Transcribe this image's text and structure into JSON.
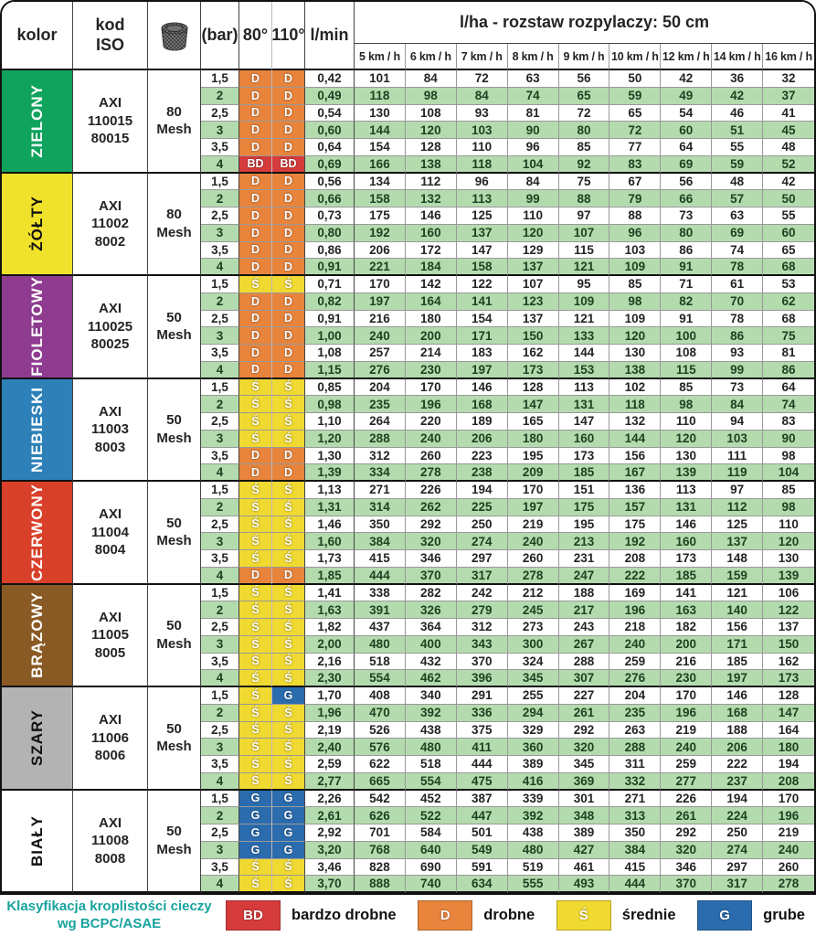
{
  "header": {
    "kolor": "kolor",
    "kod_iso": "kod\nISO",
    "bar": "(bar)",
    "deg80": "80°",
    "deg110": "110°",
    "lmin": "l/min",
    "lha_title": "l/ha - rozstaw rozpylaczy: 50 cm",
    "speeds": [
      "5 km / h",
      "6 km / h",
      "7 km / h",
      "8 km / h",
      "9 km / h",
      "10 km / h",
      "12 km / h",
      "14 km / h",
      "16 km / h"
    ],
    "mesh_icon": "mesh-filter-icon"
  },
  "class_colors": {
    "BD": "#d63b3c",
    "D": "#e8843c",
    "Ś": "#f0d930",
    "G": "#2b6cae"
  },
  "stripe_color": "#b4dbae",
  "groups": [
    {
      "name": "ZIELONY",
      "swatch": "#10a35e",
      "text_color": "#ffffff",
      "code": "AXI\n110015\n80015",
      "mesh": "80\nMesh",
      "rows": [
        {
          "bar": "1,5",
          "c80": "D",
          "c110": "D",
          "lmin": "0,42",
          "lha": [
            101,
            84,
            72,
            63,
            56,
            50,
            42,
            36,
            32
          ]
        },
        {
          "bar": "2",
          "c80": "D",
          "c110": "D",
          "lmin": "0,49",
          "lha": [
            118,
            98,
            84,
            74,
            65,
            59,
            49,
            42,
            37
          ]
        },
        {
          "bar": "2,5",
          "c80": "D",
          "c110": "D",
          "lmin": "0,54",
          "lha": [
            130,
            108,
            93,
            81,
            72,
            65,
            54,
            46,
            41
          ]
        },
        {
          "bar": "3",
          "c80": "D",
          "c110": "D",
          "lmin": "0,60",
          "lha": [
            144,
            120,
            103,
            90,
            80,
            72,
            60,
            51,
            45
          ]
        },
        {
          "bar": "3,5",
          "c80": "D",
          "c110": "D",
          "lmin": "0,64",
          "lha": [
            154,
            128,
            110,
            96,
            85,
            77,
            64,
            55,
            48
          ]
        },
        {
          "bar": "4",
          "c80": "BD",
          "c110": "BD",
          "lmin": "0,69",
          "lha": [
            166,
            138,
            118,
            104,
            92,
            83,
            69,
            59,
            52
          ]
        }
      ]
    },
    {
      "name": "ŻÓŁTY",
      "swatch": "#f0e22b",
      "text_color": "#111111",
      "code": "AXI\n11002\n8002",
      "mesh": "80\nMesh",
      "rows": [
        {
          "bar": "1,5",
          "c80": "D",
          "c110": "D",
          "lmin": "0,56",
          "lha": [
            134,
            112,
            96,
            84,
            75,
            67,
            56,
            48,
            42
          ]
        },
        {
          "bar": "2",
          "c80": "D",
          "c110": "D",
          "lmin": "0,66",
          "lha": [
            158,
            132,
            113,
            99,
            88,
            79,
            66,
            57,
            50
          ]
        },
        {
          "bar": "2,5",
          "c80": "D",
          "c110": "D",
          "lmin": "0,73",
          "lha": [
            175,
            146,
            125,
            110,
            97,
            88,
            73,
            63,
            55
          ]
        },
        {
          "bar": "3",
          "c80": "D",
          "c110": "D",
          "lmin": "0,80",
          "lha": [
            192,
            160,
            137,
            120,
            107,
            96,
            80,
            69,
            60
          ]
        },
        {
          "bar": "3,5",
          "c80": "D",
          "c110": "D",
          "lmin": "0,86",
          "lha": [
            206,
            172,
            147,
            129,
            115,
            103,
            86,
            74,
            65
          ]
        },
        {
          "bar": "4",
          "c80": "D",
          "c110": "D",
          "lmin": "0,91",
          "lha": [
            221,
            184,
            158,
            137,
            121,
            109,
            91,
            78,
            68
          ]
        }
      ]
    },
    {
      "name": "FIOLETOWY",
      "swatch": "#8f3c90",
      "text_color": "#ffffff",
      "code": "AXI\n110025\n80025",
      "mesh": "50\nMesh",
      "rows": [
        {
          "bar": "1,5",
          "c80": "Ś",
          "c110": "Ś",
          "lmin": "0,71",
          "lha": [
            170,
            142,
            122,
            107,
            95,
            85,
            71,
            61,
            53
          ]
        },
        {
          "bar": "2",
          "c80": "D",
          "c110": "D",
          "lmin": "0,82",
          "lha": [
            197,
            164,
            141,
            123,
            109,
            98,
            82,
            70,
            62
          ]
        },
        {
          "bar": "2,5",
          "c80": "D",
          "c110": "D",
          "lmin": "0,91",
          "lha": [
            216,
            180,
            154,
            137,
            121,
            109,
            91,
            78,
            68
          ]
        },
        {
          "bar": "3",
          "c80": "D",
          "c110": "D",
          "lmin": "1,00",
          "lha": [
            240,
            200,
            171,
            150,
            133,
            120,
            100,
            86,
            75
          ]
        },
        {
          "bar": "3,5",
          "c80": "D",
          "c110": "D",
          "lmin": "1,08",
          "lha": [
            257,
            214,
            183,
            162,
            144,
            130,
            108,
            93,
            81
          ]
        },
        {
          "bar": "4",
          "c80": "D",
          "c110": "D",
          "lmin": "1,15",
          "lha": [
            276,
            230,
            197,
            173,
            153,
            138,
            115,
            99,
            86
          ]
        }
      ]
    },
    {
      "name": "NIEBIESKI",
      "swatch": "#2d81b8",
      "text_color": "#ffffff",
      "code": "AXI\n11003\n8003",
      "mesh": "50\nMesh",
      "rows": [
        {
          "bar": "1,5",
          "c80": "Ś",
          "c110": "Ś",
          "lmin": "0,85",
          "lha": [
            204,
            170,
            146,
            128,
            113,
            102,
            85,
            73,
            64
          ]
        },
        {
          "bar": "2",
          "c80": "Ś",
          "c110": "Ś",
          "lmin": "0,98",
          "lha": [
            235,
            196,
            168,
            147,
            131,
            118,
            98,
            84,
            74
          ]
        },
        {
          "bar": "2,5",
          "c80": "Ś",
          "c110": "Ś",
          "lmin": "1,10",
          "lha": [
            264,
            220,
            189,
            165,
            147,
            132,
            110,
            94,
            83
          ]
        },
        {
          "bar": "3",
          "c80": "Ś",
          "c110": "Ś",
          "lmin": "1,20",
          "lha": [
            288,
            240,
            206,
            180,
            160,
            144,
            120,
            103,
            90
          ]
        },
        {
          "bar": "3,5",
          "c80": "D",
          "c110": "D",
          "lmin": "1,30",
          "lha": [
            312,
            260,
            223,
            195,
            173,
            156,
            130,
            111,
            98
          ]
        },
        {
          "bar": "4",
          "c80": "D",
          "c110": "D",
          "lmin": "1,39",
          "lha": [
            334,
            278,
            238,
            209,
            185,
            167,
            139,
            119,
            104
          ]
        }
      ]
    },
    {
      "name": "CZERWONY",
      "swatch": "#d9402a",
      "text_color": "#ffffff",
      "code": "AXI\n11004\n8004",
      "mesh": "50\nMesh",
      "rows": [
        {
          "bar": "1,5",
          "c80": "Ś",
          "c110": "Ś",
          "lmin": "1,13",
          "lha": [
            271,
            226,
            194,
            170,
            151,
            136,
            113,
            97,
            85
          ]
        },
        {
          "bar": "2",
          "c80": "Ś",
          "c110": "Ś",
          "lmin": "1,31",
          "lha": [
            314,
            262,
            225,
            197,
            175,
            157,
            131,
            112,
            98
          ]
        },
        {
          "bar": "2,5",
          "c80": "Ś",
          "c110": "Ś",
          "lmin": "1,46",
          "lha": [
            350,
            292,
            250,
            219,
            195,
            175,
            146,
            125,
            110
          ]
        },
        {
          "bar": "3",
          "c80": "Ś",
          "c110": "Ś",
          "lmin": "1,60",
          "lha": [
            384,
            320,
            274,
            240,
            213,
            192,
            160,
            137,
            120
          ]
        },
        {
          "bar": "3,5",
          "c80": "Ś",
          "c110": "Ś",
          "lmin": "1,73",
          "lha": [
            415,
            346,
            297,
            260,
            231,
            208,
            173,
            148,
            130
          ]
        },
        {
          "bar": "4",
          "c80": "D",
          "c110": "D",
          "lmin": "1,85",
          "lha": [
            444,
            370,
            317,
            278,
            247,
            222,
            185,
            159,
            139
          ]
        }
      ]
    },
    {
      "name": "BRĄZOWY",
      "swatch": "#8a5a24",
      "text_color": "#ffffff",
      "code": "AXI\n11005\n8005",
      "mesh": "50\nMesh",
      "rows": [
        {
          "bar": "1,5",
          "c80": "Ś",
          "c110": "Ś",
          "lmin": "1,41",
          "lha": [
            338,
            282,
            242,
            212,
            188,
            169,
            141,
            121,
            106
          ]
        },
        {
          "bar": "2",
          "c80": "Ś",
          "c110": "Ś",
          "lmin": "1,63",
          "lha": [
            391,
            326,
            279,
            245,
            217,
            196,
            163,
            140,
            122
          ]
        },
        {
          "bar": "2,5",
          "c80": "Ś",
          "c110": "Ś",
          "lmin": "1,82",
          "lha": [
            437,
            364,
            312,
            273,
            243,
            218,
            182,
            156,
            137
          ]
        },
        {
          "bar": "3",
          "c80": "Ś",
          "c110": "Ś",
          "lmin": "2,00",
          "lha": [
            480,
            400,
            343,
            300,
            267,
            240,
            200,
            171,
            150
          ]
        },
        {
          "bar": "3,5",
          "c80": "Ś",
          "c110": "Ś",
          "lmin": "2,16",
          "lha": [
            518,
            432,
            370,
            324,
            288,
            259,
            216,
            185,
            162
          ]
        },
        {
          "bar": "4",
          "c80": "Ś",
          "c110": "Ś",
          "lmin": "2,30",
          "lha": [
            554,
            462,
            396,
            345,
            307,
            276,
            230,
            197,
            173
          ]
        }
      ]
    },
    {
      "name": "SZARY",
      "swatch": "#b3b3b3",
      "text_color": "#111111",
      "code": "AXI\n11006\n8006",
      "mesh": "50\nMesh",
      "rows": [
        {
          "bar": "1,5",
          "c80": "Ś",
          "c110": "G",
          "lmin": "1,70",
          "lha": [
            408,
            340,
            291,
            255,
            227,
            204,
            170,
            146,
            128
          ]
        },
        {
          "bar": "2",
          "c80": "Ś",
          "c110": "Ś",
          "lmin": "1,96",
          "lha": [
            470,
            392,
            336,
            294,
            261,
            235,
            196,
            168,
            147
          ]
        },
        {
          "bar": "2,5",
          "c80": "Ś",
          "c110": "Ś",
          "lmin": "2,19",
          "lha": [
            526,
            438,
            375,
            329,
            292,
            263,
            219,
            188,
            164
          ]
        },
        {
          "bar": "3",
          "c80": "Ś",
          "c110": "Ś",
          "lmin": "2,40",
          "lha": [
            576,
            480,
            411,
            360,
            320,
            288,
            240,
            206,
            180
          ]
        },
        {
          "bar": "3,5",
          "c80": "Ś",
          "c110": "Ś",
          "lmin": "2,59",
          "lha": [
            622,
            518,
            444,
            389,
            345,
            311,
            259,
            222,
            194
          ]
        },
        {
          "bar": "4",
          "c80": "Ś",
          "c110": "Ś",
          "lmin": "2,77",
          "lha": [
            665,
            554,
            475,
            416,
            369,
            332,
            277,
            237,
            208
          ]
        }
      ]
    },
    {
      "name": "BIAŁY",
      "swatch": "#ffffff",
      "text_color": "#111111",
      "code": "AXI\n11008\n8008",
      "mesh": "50\nMesh",
      "rows": [
        {
          "bar": "1,5",
          "c80": "G",
          "c110": "G",
          "lmin": "2,26",
          "lha": [
            542,
            452,
            387,
            339,
            301,
            271,
            226,
            194,
            170
          ]
        },
        {
          "bar": "2",
          "c80": "G",
          "c110": "G",
          "lmin": "2,61",
          "lha": [
            626,
            522,
            447,
            392,
            348,
            313,
            261,
            224,
            196
          ]
        },
        {
          "bar": "2,5",
          "c80": "G",
          "c110": "G",
          "lmin": "2,92",
          "lha": [
            701,
            584,
            501,
            438,
            389,
            350,
            292,
            250,
            219
          ]
        },
        {
          "bar": "3",
          "c80": "G",
          "c110": "G",
          "lmin": "3,20",
          "lha": [
            768,
            640,
            549,
            480,
            427,
            384,
            320,
            274,
            240
          ]
        },
        {
          "bar": "3,5",
          "c80": "Ś",
          "c110": "Ś",
          "lmin": "3,46",
          "lha": [
            828,
            690,
            591,
            519,
            461,
            415,
            346,
            297,
            260
          ]
        },
        {
          "bar": "4",
          "c80": "Ś",
          "c110": "Ś",
          "lmin": "3,70",
          "lha": [
            888,
            740,
            634,
            555,
            493,
            444,
            370,
            317,
            278
          ]
        }
      ]
    }
  ],
  "legend": {
    "title": "Klasyfikacja kroplistości cieczy\nwg BCPC/ASAE",
    "items": [
      {
        "code": "BD",
        "label": "bardzo drobne",
        "color": "#d63b3c"
      },
      {
        "code": "D",
        "label": "drobne",
        "color": "#e8843c"
      },
      {
        "code": "Ś",
        "label": "średnie",
        "color": "#f0d930"
      },
      {
        "code": "G",
        "label": "grube",
        "color": "#2b6cae"
      }
    ]
  }
}
